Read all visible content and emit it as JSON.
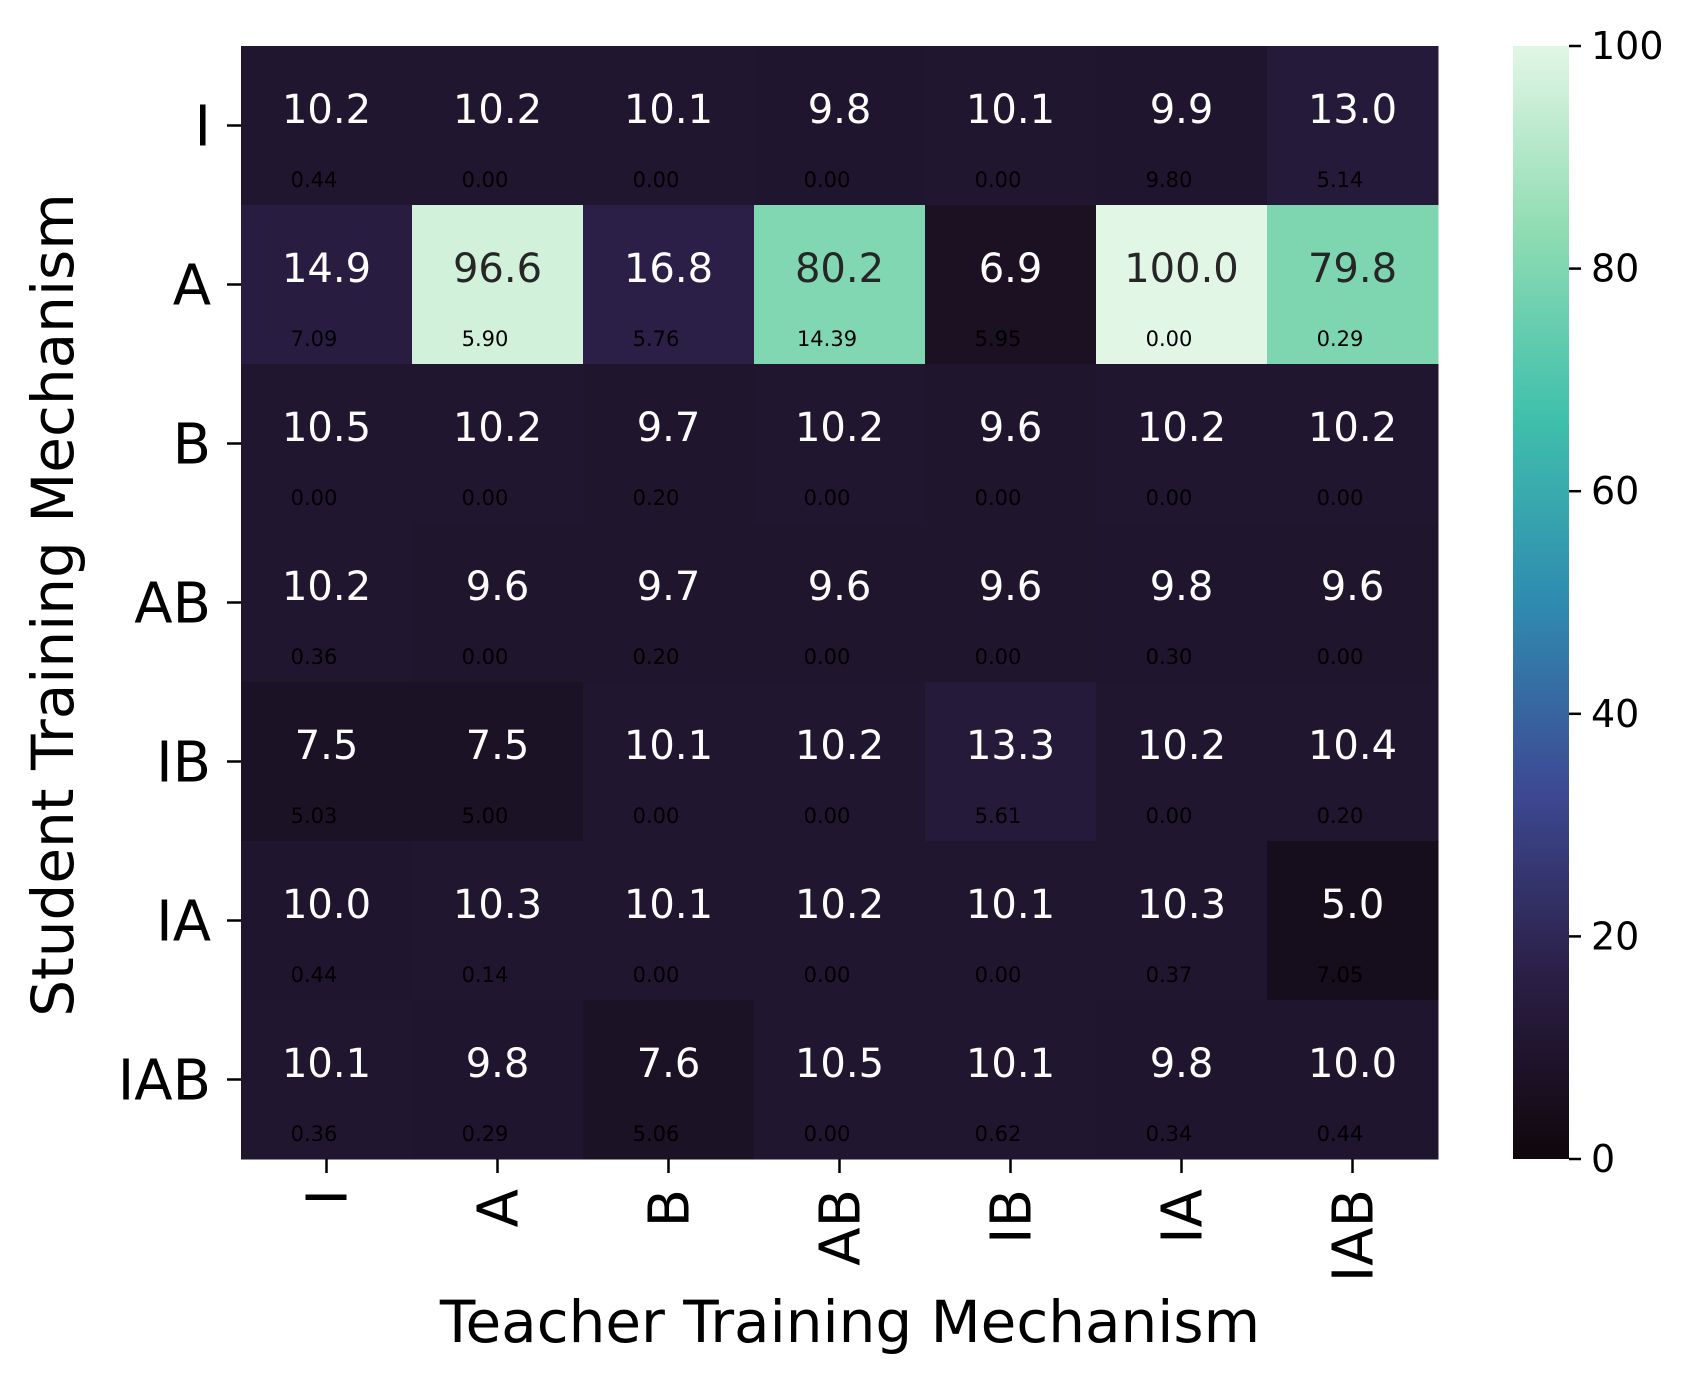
{
  "chart_data": {
    "type": "heatmap",
    "title": "",
    "xlabel": "Teacher Training Mechanism",
    "ylabel": "Student Training Mechanism",
    "x_categories": [
      "I",
      "A",
      "B",
      "AB",
      "IB",
      "IA",
      "IAB"
    ],
    "y_categories": [
      "I",
      "A",
      "B",
      "AB",
      "IB",
      "IA",
      "IAB"
    ],
    "values": [
      [
        10.2,
        10.2,
        10.1,
        9.8,
        10.1,
        9.9,
        13.0
      ],
      [
        14.9,
        96.6,
        16.8,
        80.2,
        6.9,
        100.0,
        79.8
      ],
      [
        10.5,
        10.2,
        9.7,
        10.2,
        9.6,
        10.2,
        10.2
      ],
      [
        10.2,
        9.6,
        9.7,
        9.6,
        9.6,
        9.8,
        9.6
      ],
      [
        7.5,
        7.5,
        10.1,
        10.2,
        13.3,
        10.2,
        10.4
      ],
      [
        10.0,
        10.3,
        10.1,
        10.2,
        10.1,
        10.3,
        5.0
      ],
      [
        10.1,
        9.8,
        7.6,
        10.5,
        10.1,
        9.8,
        10.0
      ]
    ],
    "value_labels": [
      [
        "10.2",
        "10.2",
        "10.1",
        "9.8",
        "10.1",
        "9.9",
        "13.0"
      ],
      [
        "14.9",
        "96.6",
        "16.8",
        "80.2",
        "6.9",
        "100.0",
        "79.8"
      ],
      [
        "10.5",
        "10.2",
        "9.7",
        "10.2",
        "9.6",
        "10.2",
        "10.2"
      ],
      [
        "10.2",
        "9.6",
        "9.7",
        "9.6",
        "9.6",
        "9.8",
        "9.6"
      ],
      [
        "7.5",
        "7.5",
        "10.1",
        "10.2",
        "13.3",
        "10.2",
        "10.4"
      ],
      [
        "10.0",
        "10.3",
        "10.1",
        "10.2",
        "10.1",
        "10.3",
        "5.0"
      ],
      [
        "10.1",
        "9.8",
        "7.6",
        "10.5",
        "10.1",
        "9.8",
        "10.0"
      ]
    ],
    "std_labels": [
      [
        "0.44",
        "0.00",
        "0.00",
        "0.00",
        "0.00",
        "9.80",
        "5.14"
      ],
      [
        "7.09",
        "5.90",
        "5.76",
        "14.39",
        "5.95",
        "0.00",
        "0.29"
      ],
      [
        "0.00",
        "0.00",
        "0.20",
        "0.00",
        "0.00",
        "0.00",
        "0.00"
      ],
      [
        "0.36",
        "0.00",
        "0.20",
        "0.00",
        "0.00",
        "0.30",
        "0.00"
      ],
      [
        "5.03",
        "5.00",
        "0.00",
        "0.00",
        "5.61",
        "0.00",
        "0.20"
      ],
      [
        "0.44",
        "0.14",
        "0.00",
        "0.00",
        "0.00",
        "0.37",
        "7.05"
      ],
      [
        "0.36",
        "0.29",
        "5.06",
        "0.00",
        "0.62",
        "0.34",
        "0.44"
      ]
    ],
    "colorbar": {
      "range": [
        0,
        100
      ],
      "ticks": [
        "0",
        "20",
        "40",
        "60",
        "80",
        "100"
      ],
      "colormap": [
        "#0f070b",
        "#2b1f46",
        "#3d4a94",
        "#2f8bb0",
        "#40c0ac",
        "#8fdcb2",
        "#e2f6e6"
      ]
    }
  }
}
